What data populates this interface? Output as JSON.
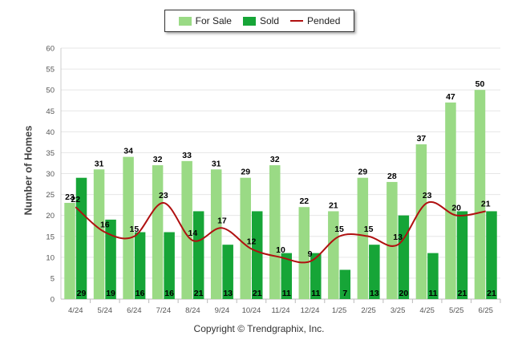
{
  "legend": {
    "for_sale": "For Sale",
    "sold": "Sold",
    "pended": "Pended"
  },
  "footer": {
    "copyright": "Copyright © Trendgraphix, Inc."
  },
  "colors": {
    "for_sale": "#9ADA85",
    "sold": "#16A537",
    "pended": "#B01010",
    "grid": "#E6E6E6"
  },
  "chart_data": {
    "type": "bar",
    "title": "",
    "xlabel": "",
    "ylabel": "Number of Homes",
    "ylim": [
      0,
      60
    ],
    "yticks": [
      0,
      5,
      10,
      15,
      20,
      25,
      30,
      35,
      40,
      45,
      50,
      55,
      60
    ],
    "grid": true,
    "legend_position": "top",
    "categories": [
      "4/24",
      "5/24",
      "6/24",
      "7/24",
      "8/24",
      "9/24",
      "10/24",
      "11/24",
      "12/24",
      "1/25",
      "2/25",
      "3/25",
      "4/25",
      "5/25",
      "6/25"
    ],
    "series": [
      {
        "name": "For Sale",
        "type": "bar",
        "values": [
          23,
          31,
          34,
          32,
          33,
          31,
          29,
          32,
          22,
          21,
          29,
          28,
          37,
          47,
          50
        ]
      },
      {
        "name": "Sold",
        "type": "bar",
        "values": [
          29,
          19,
          16,
          16,
          21,
          13,
          21,
          11,
          11,
          7,
          13,
          20,
          11,
          21,
          21
        ]
      },
      {
        "name": "Pended",
        "type": "line",
        "values": [
          22,
          16,
          15,
          23,
          14,
          17,
          12,
          10,
          9,
          15,
          15,
          13,
          23,
          20,
          21
        ]
      }
    ]
  }
}
